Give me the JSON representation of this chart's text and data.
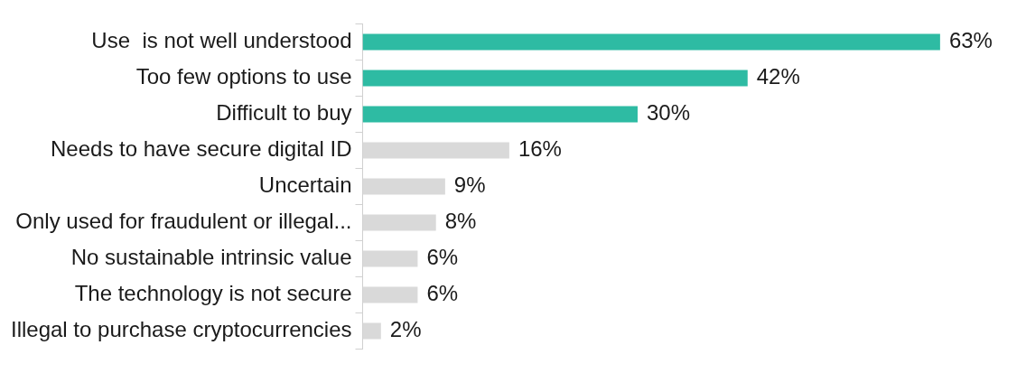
{
  "chart_data": {
    "type": "bar",
    "orientation": "horizontal",
    "categories": [
      "Use  is not well understood",
      "Too few options to use",
      "Difficult to buy",
      "Needs to have secure digital ID",
      "Uncertain",
      "Only used for fraudulent or illegal...",
      "No sustainable intrinsic value",
      "The technology is not secure",
      "Illegal to purchase cryptocurrencies"
    ],
    "values": [
      63,
      42,
      30,
      16,
      9,
      8,
      6,
      6,
      2
    ],
    "colors": [
      "#2ebba3",
      "#2ebba3",
      "#2ebba3",
      "#d9d9d9",
      "#d9d9d9",
      "#d9d9d9",
      "#d9d9d9",
      "#d9d9d9",
      "#d9d9d9"
    ],
    "value_labels": [
      "63%",
      "42%",
      "30%",
      "16%",
      "9%",
      "8%",
      "6%",
      "6%",
      "2%"
    ],
    "legend": false
  }
}
